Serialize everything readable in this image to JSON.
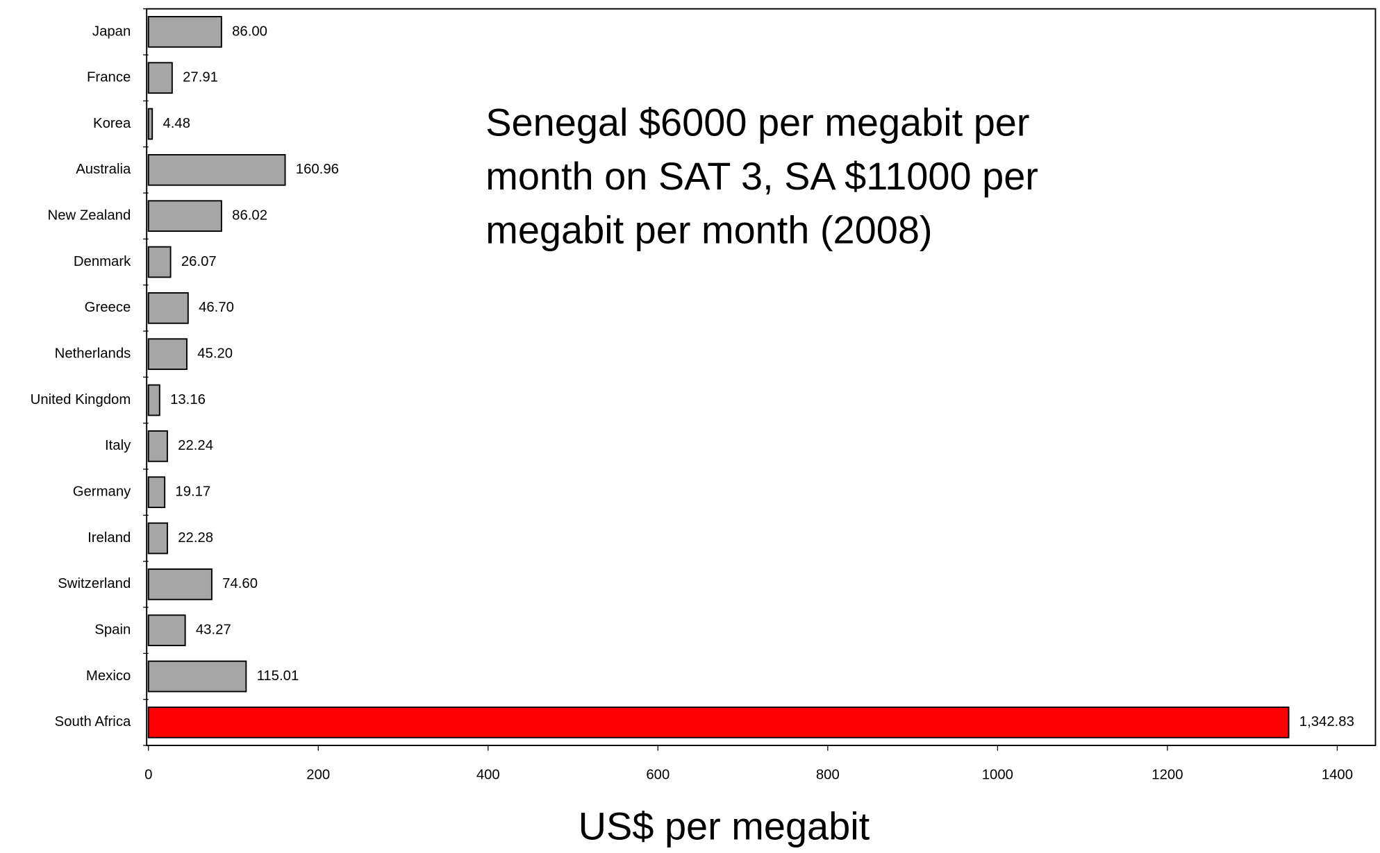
{
  "chart_data": {
    "type": "hbar",
    "categories": [
      "Japan",
      "France",
      "Korea",
      "Australia",
      "New Zealand",
      "Denmark",
      "Greece",
      "Netherlands",
      "United Kingdom",
      "Italy",
      "Germany",
      "Ireland",
      "Switzerland",
      "Spain",
      "Mexico",
      "South Africa"
    ],
    "values": [
      86.0,
      27.91,
      4.48,
      160.96,
      86.02,
      26.07,
      46.7,
      45.2,
      13.16,
      22.24,
      19.17,
      22.28,
      74.6,
      43.27,
      115.01,
      1342.83
    ],
    "value_labels": [
      "86.00",
      "27.91",
      "4.48",
      "160.96",
      "86.02",
      "26.07",
      "46.70",
      "45.20",
      "13.16",
      "22.24",
      "19.17",
      "22.28",
      "74.60",
      "43.27",
      "115.01",
      "1,342.83"
    ],
    "colors": [
      "#a6a6a6",
      "#a6a6a6",
      "#a6a6a6",
      "#a6a6a6",
      "#a6a6a6",
      "#a6a6a6",
      "#a6a6a6",
      "#a6a6a6",
      "#a6a6a6",
      "#a6a6a6",
      "#a6a6a6",
      "#a6a6a6",
      "#a6a6a6",
      "#a6a6a6",
      "#a6a6a6",
      "#ff0000"
    ],
    "xlim": [
      0,
      1445
    ],
    "xticks": [
      0,
      200,
      400,
      600,
      800,
      1000,
      1200,
      1400
    ],
    "xlabel": "US$ per megabit",
    "annotation": [
      "Senegal $6000 per megabit per",
      "month on SAT 3, SA $11000 per",
      "megabit per month (2008)"
    ]
  }
}
